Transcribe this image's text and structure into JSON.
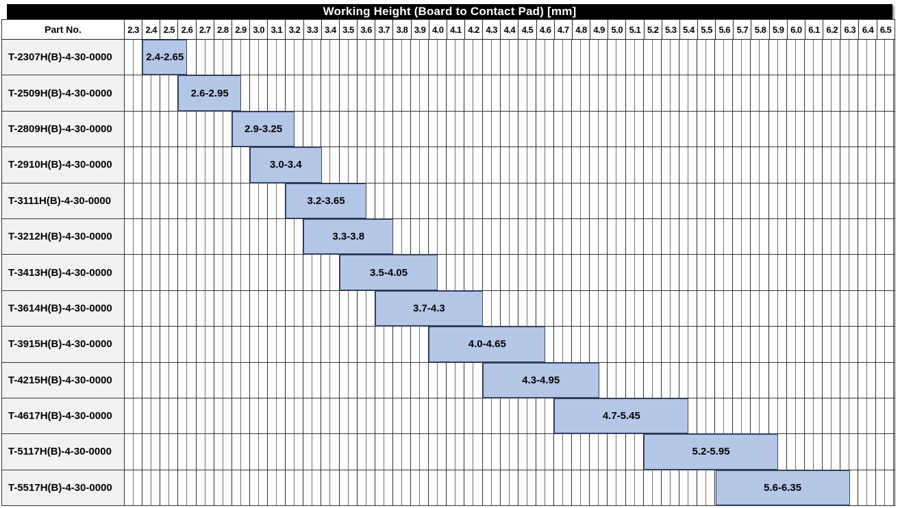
{
  "chart_data": {
    "type": "bar",
    "subtype": "horizontal-range-gantt",
    "title": "Working Height (Board to Contact Pad) [mm]",
    "part_column_header": "Part No.",
    "x_axis": {
      "min": 2.3,
      "max": 6.6,
      "tick_step": 0.1,
      "minor_step": 0.05,
      "tick_labels": [
        "2.3",
        "2.4",
        "2.5",
        "2.6",
        "2.7",
        "2.8",
        "2.9",
        "3.0",
        "3.1",
        "3.2",
        "3.3",
        "3.4",
        "3.5",
        "3.6",
        "3.7",
        "3.8",
        "3.9",
        "4.0",
        "4.1",
        "4.2",
        "4.3",
        "4.4",
        "4.5",
        "4.6",
        "4.7",
        "4.8",
        "4.9",
        "5.0",
        "5.1",
        "5.2",
        "5.3",
        "5.4",
        "5.5",
        "5.6",
        "5.7",
        "5.8",
        "5.9",
        "6.0",
        "6.1",
        "6.2",
        "6.3",
        "6.4",
        "6.5"
      ]
    },
    "rows": [
      {
        "part_no": "T-2307H(B)-4-30-0000",
        "start": 2.4,
        "end": 2.65,
        "label": "2.4-2.65"
      },
      {
        "part_no": "T-2509H(B)-4-30-0000",
        "start": 2.6,
        "end": 2.95,
        "label": "2.6-2.95"
      },
      {
        "part_no": "T-2809H(B)-4-30-0000",
        "start": 2.9,
        "end": 3.25,
        "label": "2.9-3.25"
      },
      {
        "part_no": "T-2910H(B)-4-30-0000",
        "start": 3.0,
        "end": 3.4,
        "label": "3.0-3.4"
      },
      {
        "part_no": "T-3111H(B)-4-30-0000",
        "start": 3.2,
        "end": 3.65,
        "label": "3.2-3.65"
      },
      {
        "part_no": "T-3212H(B)-4-30-0000",
        "start": 3.3,
        "end": 3.8,
        "label": "3.3-3.8"
      },
      {
        "part_no": "T-3413H(B)-4-30-0000",
        "start": 3.5,
        "end": 4.05,
        "label": "3.5-4.05"
      },
      {
        "part_no": "T-3614H(B)-4-30-0000",
        "start": 3.7,
        "end": 4.3,
        "label": "3.7-4.3"
      },
      {
        "part_no": "T-3915H(B)-4-30-0000",
        "start": 4.0,
        "end": 4.65,
        "label": "4.0-4.65"
      },
      {
        "part_no": "T-4215H(B)-4-30-0000",
        "start": 4.3,
        "end": 4.95,
        "label": "4.3-4.95"
      },
      {
        "part_no": "T-4617H(B)-4-30-0000",
        "start": 4.7,
        "end": 5.45,
        "label": "4.7-5.45"
      },
      {
        "part_no": "T-5117H(B)-4-30-0000",
        "start": 5.2,
        "end": 5.95,
        "label": "5.2-5.95"
      },
      {
        "part_no": "T-5517H(B)-4-30-0000",
        "start": 5.6,
        "end": 6.35,
        "label": "5.6-6.35"
      }
    ],
    "colors": {
      "bar_fill": "#b5c7e7",
      "bar_border": "#2e4672",
      "title_bg": "#000000",
      "title_text": "#ffffff",
      "part_cell_bg": "#f2f2f2",
      "grid_minor_line": "#6e6e6e",
      "grid_major_line": "#2f2f2f"
    },
    "legend_position": "none",
    "grid": true
  }
}
